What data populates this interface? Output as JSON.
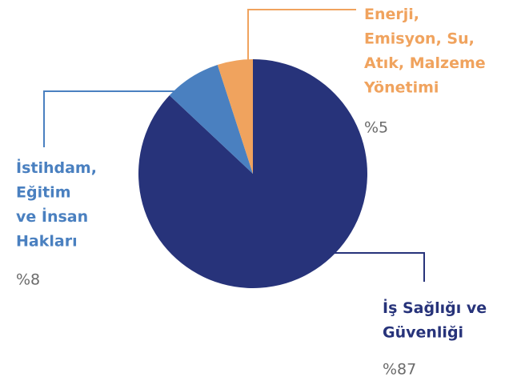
{
  "chart_data": {
    "type": "pie",
    "categories": [
      "İş Sağlığı ve\nGüvenliği",
      "İstihdam,\nEğitim\nve İnsan\nHakları",
      "Enerji,\nEmisyon, Su,\nAtık, Malzeme\nYönetimi"
    ],
    "values": [
      87,
      8,
      5
    ],
    "value_labels": [
      "%87",
      "%8",
      "%5"
    ],
    "colors": [
      "#27337a",
      "#4a80c0",
      "#f0a35e"
    ]
  }
}
